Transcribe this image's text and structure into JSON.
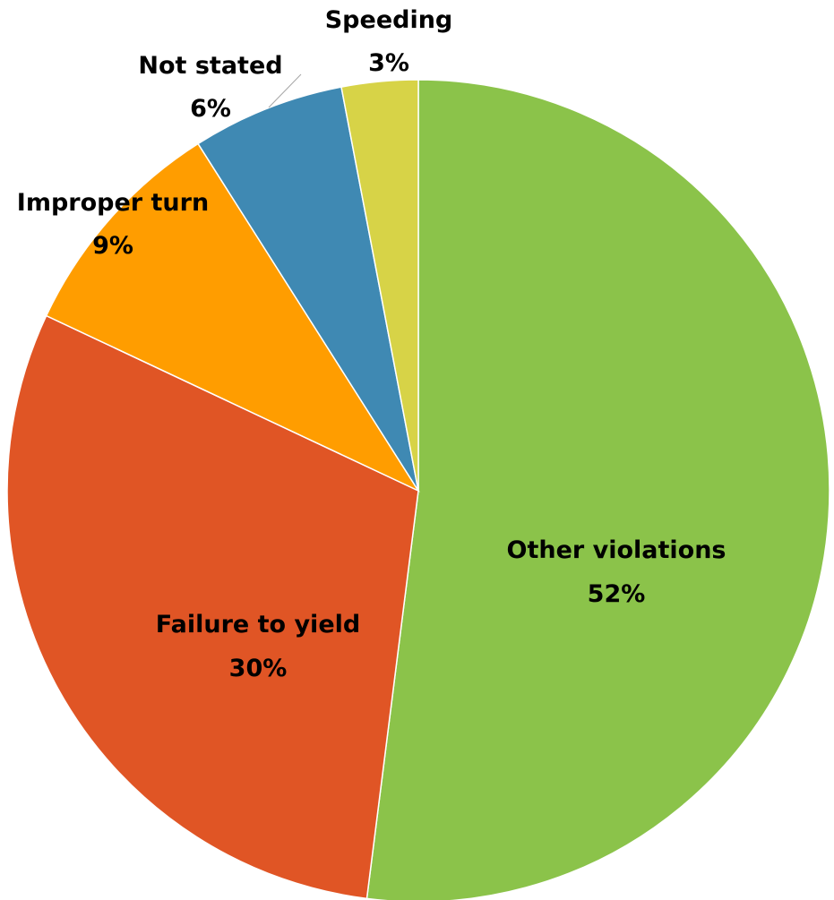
{
  "chart_data": {
    "type": "pie",
    "title": "",
    "slices": [
      {
        "label": "Other violations",
        "value": 52,
        "value_label": "52%",
        "color": "#8bc34a"
      },
      {
        "label": "Failure to yield",
        "value": 30,
        "value_label": "30%",
        "color": "#e05525"
      },
      {
        "label": "Improper turn",
        "value": 9,
        "value_label": "9%",
        "color": "#ff9d00"
      },
      {
        "label": "Not stated",
        "value": 6,
        "value_label": "6%",
        "color": "#3f89b3"
      },
      {
        "label": "Speeding",
        "value": 3,
        "value_label": "3%",
        "color": "#d7d347"
      }
    ],
    "start_angle": "12 o'clock",
    "direction": "clockwise",
    "legend": "none"
  }
}
